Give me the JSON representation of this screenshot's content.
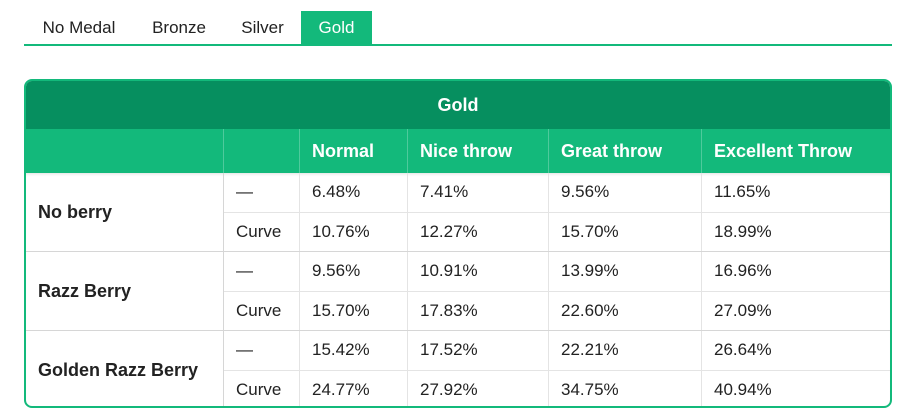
{
  "tabs": [
    {
      "label": "No Medal",
      "active": false
    },
    {
      "label": "Bronze",
      "active": false
    },
    {
      "label": "Silver",
      "active": false
    },
    {
      "label": "Gold",
      "active": true
    }
  ],
  "table": {
    "title": "Gold",
    "columns": [
      "",
      "",
      "Normal",
      "Nice throw",
      "Great throw",
      "Excellent Throw"
    ],
    "groups": [
      {
        "label": "No berry",
        "rows": [
          {
            "throw": "—",
            "values": [
              "6.48%",
              "7.41%",
              "9.56%",
              "11.65%"
            ]
          },
          {
            "throw": "Curve",
            "values": [
              "10.76%",
              "12.27%",
              "15.70%",
              "18.99%"
            ]
          }
        ]
      },
      {
        "label": "Razz Berry",
        "rows": [
          {
            "throw": "—",
            "values": [
              "9.56%",
              "10.91%",
              "13.99%",
              "16.96%"
            ]
          },
          {
            "throw": "Curve",
            "values": [
              "15.70%",
              "17.83%",
              "22.60%",
              "27.09%"
            ]
          }
        ]
      },
      {
        "label": "Golden Razz Berry",
        "rows": [
          {
            "throw": "—",
            "values": [
              "15.42%",
              "17.52%",
              "22.21%",
              "26.64%"
            ]
          },
          {
            "throw": "Curve",
            "values": [
              "24.77%",
              "27.92%",
              "34.75%",
              "40.94%"
            ]
          }
        ]
      }
    ]
  },
  "colors": {
    "accent": "#13b97b",
    "header_dark": "#068f5f"
  }
}
